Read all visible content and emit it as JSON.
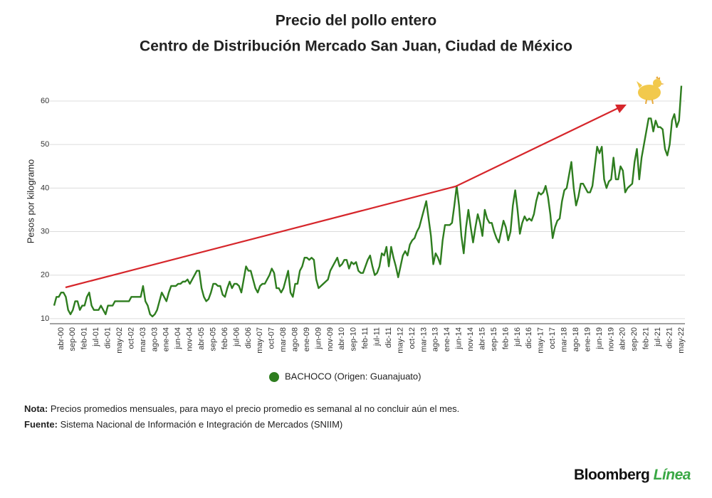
{
  "chart_data": {
    "type": "line",
    "title": "Precio del pollo entero",
    "subtitle": "Centro de Distribución Mercado San Juan, Ciudad de México",
    "y_label": "Pesos por kilogramo",
    "ylim": [
      9,
      65
    ],
    "yticks": [
      10,
      20,
      30,
      40,
      50,
      60
    ],
    "grid": true,
    "legend": "bottom",
    "categories": [
      null,
      null,
      null,
      "abr-00",
      null,
      null,
      null,
      null,
      "sep-00",
      null,
      null,
      null,
      null,
      "feb-01",
      null,
      null,
      null,
      null,
      "jul-01",
      null,
      null,
      null,
      null,
      "dic-01",
      null,
      null,
      null,
      null,
      "may-02",
      null,
      null,
      null,
      null,
      "oct-02",
      null,
      null,
      null,
      null,
      "mar-03",
      null,
      null,
      null,
      null,
      "ago-03",
      null,
      null,
      null,
      null,
      "ene-04",
      null,
      null,
      null,
      null,
      "jun-04",
      null,
      null,
      null,
      null,
      "nov-04",
      null,
      null,
      null,
      null,
      "abr-05",
      null,
      null,
      null,
      null,
      "sep-05",
      null,
      null,
      null,
      null,
      "feb-06",
      null,
      null,
      null,
      null,
      "jul-06",
      null,
      null,
      null,
      null,
      "dic-06",
      null,
      null,
      null,
      null,
      "may-07",
      null,
      null,
      null,
      null,
      "oct-07",
      null,
      null,
      null,
      null,
      "mar-08",
      null,
      null,
      null,
      null,
      "ago-08",
      null,
      null,
      null,
      null,
      "ene-09",
      null,
      null,
      null,
      null,
      "jun-09",
      null,
      null,
      null,
      null,
      "nov-09",
      null,
      null,
      null,
      null,
      "abr-10",
      null,
      null,
      null,
      null,
      "sep-10",
      null,
      null,
      null,
      null,
      "feb-11",
      null,
      null,
      null,
      null,
      "jul-11",
      null,
      null,
      null,
      null,
      "dic-11",
      null,
      null,
      null,
      null,
      "may-12",
      null,
      null,
      null,
      null,
      "oct-12",
      null,
      null,
      null,
      null,
      "mar-13",
      null,
      null,
      null,
      null,
      "ago-13",
      null,
      null,
      null,
      null,
      "ene-14",
      null,
      null,
      null,
      null,
      "jun-14",
      null,
      null,
      null,
      null,
      "nov-14",
      null,
      null,
      null,
      null,
      "abr-15",
      null,
      null,
      null,
      null,
      "sep-15",
      null,
      null,
      null,
      null,
      "feb-16",
      null,
      null,
      null,
      null,
      "jul-16",
      null,
      null,
      null,
      null,
      "dic-16",
      null,
      null,
      null,
      null,
      "may-17",
      null,
      null,
      null,
      null,
      "oct-17",
      null,
      null,
      null,
      null,
      "mar-18",
      null,
      null,
      null,
      null,
      "ago-18",
      null,
      null,
      null,
      null,
      "ene-19",
      null,
      null,
      null,
      null,
      "jun-19",
      null,
      null,
      null,
      null,
      "nov-19",
      null,
      null,
      null,
      null,
      "abr-20",
      null,
      null,
      null,
      null,
      "sep-20",
      null,
      null,
      null,
      null,
      "feb-21",
      null,
      null,
      null,
      null,
      "jul-21",
      null,
      null,
      null,
      null,
      "dic-21",
      null,
      null,
      null,
      null,
      "may-22"
    ],
    "series": [
      {
        "name": "BACHOCO (Origen: Guanajuato)",
        "color": "#2e7d1f",
        "values": [
          13,
          15,
          15,
          16,
          16,
          15,
          12,
          11,
          12,
          14,
          14,
          12,
          13,
          13,
          15,
          16,
          13,
          12,
          12,
          12,
          13,
          12,
          11,
          13,
          13,
          13,
          14,
          14,
          14,
          14,
          14,
          14,
          14,
          15,
          15,
          15,
          15,
          15,
          17.5,
          14,
          13,
          11,
          10.5,
          11,
          12,
          14,
          16,
          15,
          14,
          16,
          17.5,
          17.5,
          17.5,
          18,
          18,
          18.5,
          18.5,
          19,
          18,
          19,
          20,
          21,
          21,
          17,
          15,
          14,
          14.5,
          16,
          18,
          18,
          17.5,
          17.5,
          15.5,
          15,
          17,
          18.5,
          17,
          18,
          18,
          17.5,
          16,
          19,
          22,
          21,
          21,
          19,
          17,
          16,
          17.5,
          18,
          18,
          19,
          20,
          21.5,
          20.5,
          17,
          17,
          16,
          17,
          19,
          21,
          16,
          15,
          18,
          18,
          21,
          22,
          24,
          24,
          23.5,
          24,
          23.5,
          19,
          17,
          17.5,
          18,
          18.5,
          19,
          21,
          22,
          23,
          24,
          22,
          22.5,
          23.5,
          23.5,
          21.5,
          23,
          22.5,
          23,
          21,
          20.5,
          20.5,
          22,
          23.5,
          24.5,
          22,
          20,
          20.5,
          22,
          25,
          24.5,
          26.5,
          22,
          26.5,
          24,
          22,
          19.5,
          22,
          24.5,
          25.5,
          24.5,
          27,
          28,
          28.5,
          30,
          31,
          33,
          35,
          37,
          33,
          29,
          22.5,
          25,
          24,
          22.5,
          28,
          31.5,
          31.5,
          31.5,
          32,
          36,
          40.5,
          36,
          29,
          25,
          31,
          35,
          31,
          27.5,
          31,
          34,
          32,
          29,
          35,
          33,
          32,
          32,
          30,
          28.5,
          27.5,
          30,
          32.5,
          31,
          28,
          30,
          36,
          39.5,
          35,
          29.5,
          32,
          33.5,
          32.5,
          33,
          32.5,
          34,
          37,
          39,
          38.5,
          39,
          40.5,
          38,
          34,
          28.5,
          31,
          32.5,
          33,
          37,
          39.5,
          40,
          43,
          46,
          40,
          36,
          38,
          41,
          41,
          40,
          39,
          39,
          40.5,
          45,
          49.5,
          48,
          49.5,
          42,
          40,
          41.5,
          42,
          47,
          42,
          42,
          45,
          44,
          39,
          40,
          40.5,
          41,
          46,
          49,
          42,
          47,
          50,
          53,
          56,
          56,
          53,
          55.5,
          54,
          54,
          53.5,
          49,
          47.5,
          50,
          55.5,
          57,
          54,
          55.5,
          63.5
        ]
      }
    ]
  },
  "footnotes": [
    {
      "label": "Nota:",
      "text": "Precios promedios mensuales, para mayo el precio promedio es semanal al no concluir aún el mes."
    },
    {
      "label": "Fuente:",
      "text": "Sistema Nacional de Información e Integración de Mercados (SNIIM)"
    }
  ],
  "brand": {
    "name": "Bloomberg",
    "suffix": "Línea"
  }
}
